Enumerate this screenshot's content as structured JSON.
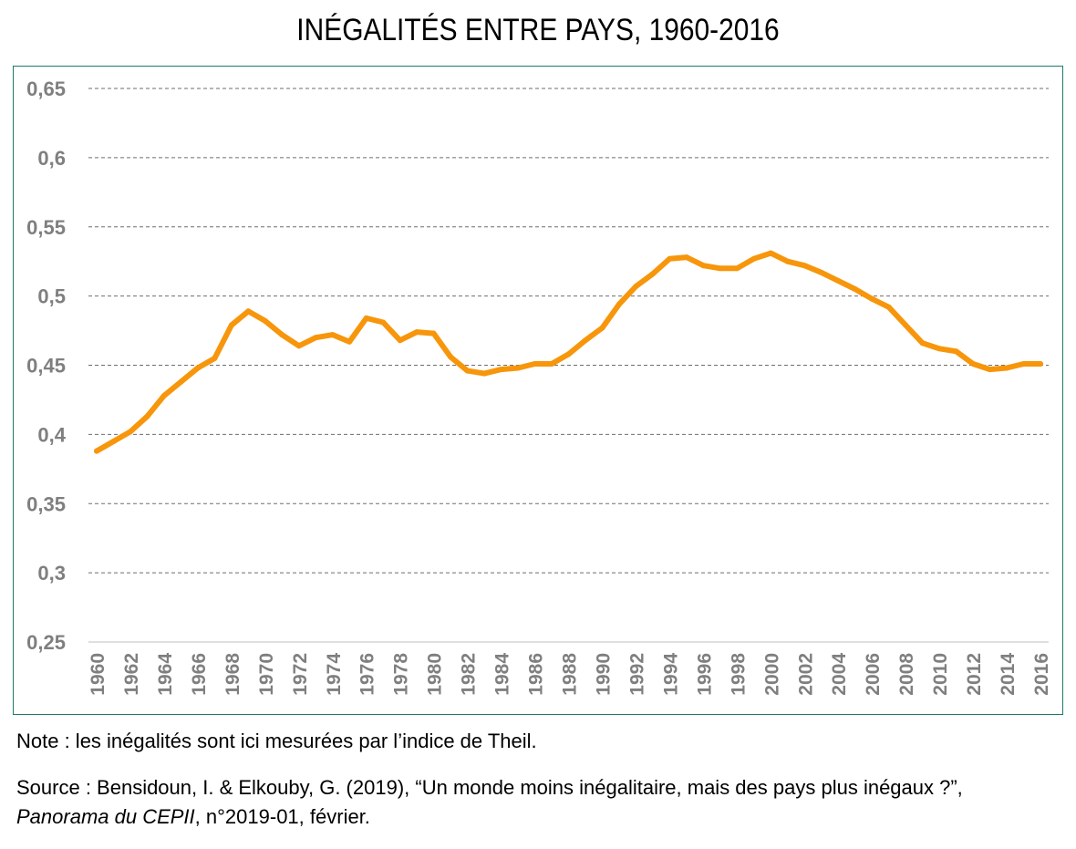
{
  "chart_data": {
    "type": "line",
    "title": "INÉGALITÉS ENTRE PAYS, 1960-2016",
    "xlabel": "",
    "ylabel": "",
    "ylim": [
      0.25,
      0.65
    ],
    "y_ticks": [
      "0,65",
      "0,6",
      "0,55",
      "0,5",
      "0,45",
      "0,4",
      "0,35",
      "0,3",
      "0,25"
    ],
    "y_tick_values": [
      0.65,
      0.6,
      0.55,
      0.5,
      0.45,
      0.4,
      0.35,
      0.3,
      0.25
    ],
    "x_tick_labels": [
      "1960",
      "1962",
      "1964",
      "1966",
      "1968",
      "1970",
      "1972",
      "1974",
      "1976",
      "1978",
      "1980",
      "1982",
      "1984",
      "1986",
      "1988",
      "1990",
      "1992",
      "1994",
      "1996",
      "1998",
      "2000",
      "2002",
      "2004",
      "2006",
      "2008",
      "2010",
      "2012",
      "2014",
      "2016"
    ],
    "grid": "horizontal dashed",
    "legend": "none",
    "line_color": "#f7960b",
    "grid_color": "#6e6e6e",
    "frame_color": "#1f7a6b",
    "tick_label_color": "#7f7f7f",
    "series": [
      {
        "x": [
          1960,
          1961,
          1962,
          1963,
          1964,
          1965,
          1966,
          1967,
          1968,
          1969,
          1970,
          1971,
          1972,
          1973,
          1974,
          1975,
          1976,
          1977,
          1978,
          1979,
          1980,
          1981,
          1982,
          1983,
          1984,
          1985,
          1986,
          1987,
          1988,
          1989,
          1990,
          1991,
          1992,
          1993,
          1994,
          1995,
          1996,
          1997,
          1998,
          1999,
          2000,
          2001,
          2002,
          2003,
          2004,
          2005,
          2006,
          2007,
          2008,
          2009,
          2010,
          2011,
          2012,
          2013,
          2014,
          2015,
          2016
        ],
        "values": [
          0.388,
          0.395,
          0.402,
          0.413,
          0.428,
          0.438,
          0.448,
          0.455,
          0.479,
          0.489,
          0.482,
          0.472,
          0.464,
          0.47,
          0.472,
          0.467,
          0.484,
          0.481,
          0.468,
          0.474,
          0.473,
          0.456,
          0.446,
          0.444,
          0.447,
          0.448,
          0.451,
          0.451,
          0.458,
          0.468,
          0.477,
          0.494,
          0.507,
          0.516,
          0.527,
          0.528,
          0.522,
          0.52,
          0.52,
          0.527,
          0.531,
          0.525,
          0.522,
          0.517,
          0.511,
          0.505,
          0.498,
          0.492,
          0.479,
          0.466,
          0.462,
          0.46,
          0.451,
          0.447,
          0.448,
          0.451,
          0.451
        ]
      }
    ]
  },
  "note": "Note : les inégalités sont ici mesurées par l’indice de Theil.",
  "source": {
    "line1": "Source : Bensidoun, I. & Elkouby, G. (2019), “Un monde moins inégalitaire, mais des pays plus inégaux ?”,",
    "publication": "Panorama du CEPII",
    "line2_rest": ", n°2019-01, février."
  }
}
